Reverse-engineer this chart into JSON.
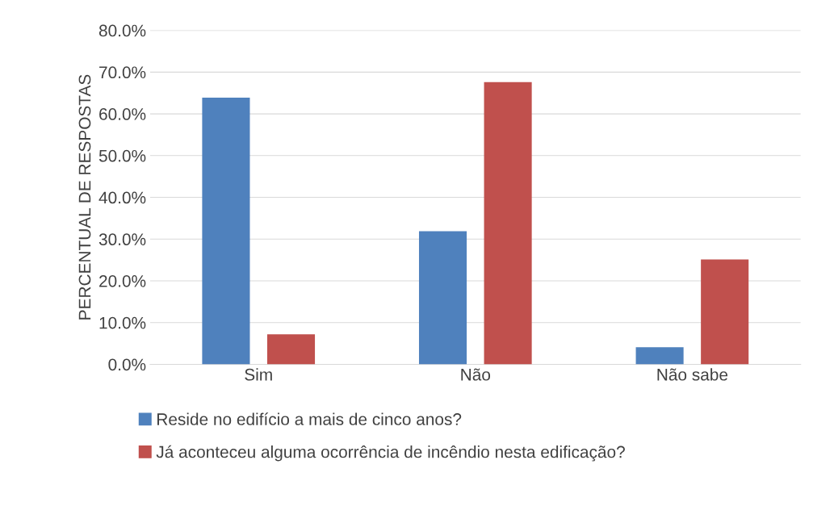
{
  "chart_data": {
    "type": "bar",
    "ylabel": "PERCENTUAL DE RESPOSTAS",
    "categories": [
      "Sim",
      "Não",
      "Não sabe"
    ],
    "series": [
      {
        "name": "Reside no edifício a mais de cinco anos?",
        "color": "#4f81bd",
        "values": [
          63.9,
          31.9,
          4.1
        ]
      },
      {
        "name": "Já aconteceu alguma ocorrência de incêndio nesta edificação?",
        "color": "#c0504d",
        "values": [
          7.2,
          67.6,
          25.1
        ]
      }
    ],
    "ylim": [
      0,
      80
    ],
    "yticks": [
      {
        "value": 0,
        "label": "0.0%"
      },
      {
        "value": 10,
        "label": "10.0%"
      },
      {
        "value": 20,
        "label": "20.0%"
      },
      {
        "value": 30,
        "label": "30.0%"
      },
      {
        "value": 40,
        "label": "40.0%"
      },
      {
        "value": 50,
        "label": "50.0%"
      },
      {
        "value": 60,
        "label": "60.0%"
      },
      {
        "value": 70,
        "label": "70.0%"
      },
      {
        "value": 80,
        "label": "80.0%"
      }
    ],
    "grid": "y",
    "legend": "bottom"
  }
}
